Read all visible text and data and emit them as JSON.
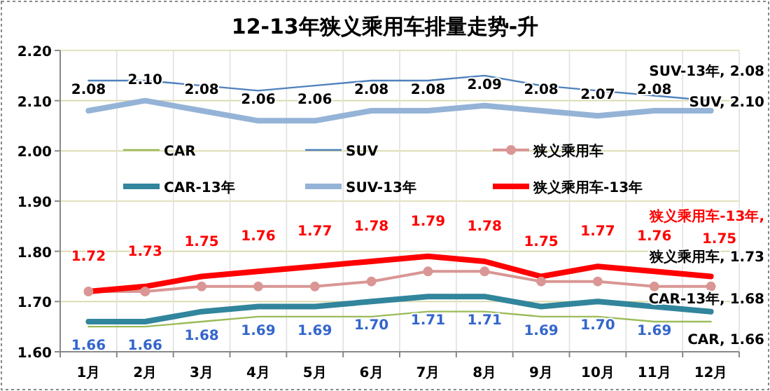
{
  "chart_data": {
    "type": "line",
    "title": "12-13年狭义乘用车排量走势-升",
    "categories": [
      "1月",
      "2月",
      "3月",
      "4月",
      "5月",
      "6月",
      "7月",
      "8月",
      "9月",
      "10月",
      "11月",
      "12月"
    ],
    "series": [
      {
        "name": "CAR",
        "color": "#9bbb59",
        "marker": "none",
        "values": [
          1.65,
          1.65,
          1.66,
          1.67,
          1.67,
          1.67,
          1.68,
          1.68,
          1.67,
          1.67,
          1.66,
          1.66
        ],
        "value_labels": [
          null,
          null,
          null,
          null,
          null,
          null,
          null,
          null,
          null,
          null,
          null,
          "CAR, 1.66"
        ]
      },
      {
        "name": "SUV",
        "color": "#4f81bd",
        "marker": "none",
        "values": [
          2.14,
          2.14,
          2.13,
          2.12,
          2.13,
          2.14,
          2.14,
          2.15,
          2.13,
          2.12,
          2.11,
          2.1
        ],
        "value_labels": [
          null,
          null,
          null,
          null,
          null,
          null,
          null,
          null,
          null,
          null,
          null,
          "SUV, 2.10"
        ]
      },
      {
        "name": "狭义乘用车",
        "color": "#d99694",
        "marker": "circle",
        "values": [
          1.72,
          1.72,
          1.73,
          1.73,
          1.73,
          1.74,
          1.76,
          1.76,
          1.74,
          1.74,
          1.73,
          1.73
        ],
        "value_labels": [
          null,
          null,
          null,
          null,
          null,
          null,
          null,
          null,
          null,
          null,
          null,
          "狭义乘用车, 1.73"
        ]
      },
      {
        "name": "CAR-13年",
        "color": "#31859c",
        "marker": "none",
        "values": [
          1.66,
          1.66,
          1.68,
          1.69,
          1.69,
          1.7,
          1.71,
          1.71,
          1.69,
          1.7,
          1.69,
          1.68
        ],
        "value_labels": [
          "1.66",
          "1.66",
          "1.68",
          "1.69",
          "1.69",
          "1.70",
          "1.71",
          "1.71",
          "1.69",
          "1.70",
          "1.69",
          "CAR-13年, 1.68"
        ]
      },
      {
        "name": "SUV-13年",
        "color": "#95b3d7",
        "marker": "none",
        "values": [
          2.08,
          2.1,
          2.08,
          2.06,
          2.06,
          2.08,
          2.08,
          2.09,
          2.08,
          2.07,
          2.08,
          2.08
        ],
        "value_labels": [
          "2.08",
          "2.10",
          "2.08",
          "2.06",
          "2.06",
          "2.08",
          "2.08",
          "2.09",
          "2.08",
          "2.07",
          "2.08",
          "SUV-13年, 2.08"
        ]
      },
      {
        "name": "狭义乘用车-13年",
        "color": "#ff0000",
        "marker": "none",
        "values": [
          1.72,
          1.73,
          1.75,
          1.76,
          1.77,
          1.78,
          1.79,
          1.78,
          1.75,
          1.77,
          1.76,
          1.75
        ],
        "value_labels": [
          "1.72",
          "1.73",
          "1.75",
          "1.76",
          "1.77",
          "1.78",
          "1.79",
          "1.78",
          "1.75",
          "1.77",
          "1.76",
          "狭义乘用车-13年, 1.75"
        ]
      }
    ],
    "ylim": [
      1.6,
      2.2
    ],
    "yticks": [
      {
        "value": 1.6,
        "label": "1.60"
      },
      {
        "value": 1.7,
        "label": "1.70"
      },
      {
        "value": 1.8,
        "label": "1.80"
      },
      {
        "value": 1.9,
        "label": "1.90"
      },
      {
        "value": 2.0,
        "label": "2.00"
      },
      {
        "value": 2.1,
        "label": "2.10"
      },
      {
        "value": 2.2,
        "label": "2.20"
      }
    ],
    "grid": true,
    "legend": "center"
  }
}
